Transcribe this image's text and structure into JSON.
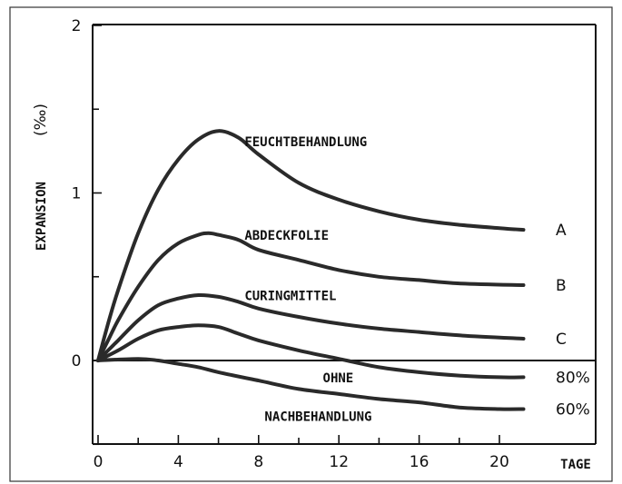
{
  "chart_data": {
    "type": "line",
    "ylabel": "EXPANSION",
    "ylabel_unit": "(‰)",
    "xlabel": "TAGE",
    "xlim": [
      0,
      20
    ],
    "ylim": [
      -0.5,
      2
    ],
    "x_ticks": [
      0,
      4,
      8,
      12,
      16,
      20
    ],
    "y_ticks": [
      0,
      1,
      2
    ],
    "grid": false,
    "x_tick_labels": [
      "0",
      "4",
      "8",
      "12",
      "16",
      "20"
    ],
    "y_tick_labels": [
      "0",
      "1",
      "2"
    ],
    "series": [
      {
        "name": "A",
        "color": "#2a2a2a",
        "points": [
          [
            0,
            0
          ],
          [
            0.5,
            0.22
          ],
          [
            1,
            0.42
          ],
          [
            2,
            0.76
          ],
          [
            3,
            1.02
          ],
          [
            4,
            1.2
          ],
          [
            5,
            1.32
          ],
          [
            6,
            1.37
          ],
          [
            7,
            1.33
          ],
          [
            8,
            1.23
          ],
          [
            10,
            1.06
          ],
          [
            12,
            0.96
          ],
          [
            14,
            0.89
          ],
          [
            16,
            0.84
          ],
          [
            18,
            0.81
          ],
          [
            20,
            0.79
          ],
          [
            21.2,
            0.78
          ]
        ]
      },
      {
        "name": "B",
        "color": "#2a2a2a",
        "points": [
          [
            0,
            0
          ],
          [
            0.5,
            0.12
          ],
          [
            1,
            0.24
          ],
          [
            2,
            0.44
          ],
          [
            3,
            0.6
          ],
          [
            4,
            0.7
          ],
          [
            5,
            0.75
          ],
          [
            5.5,
            0.76
          ],
          [
            6,
            0.75
          ],
          [
            7,
            0.72
          ],
          [
            8,
            0.66
          ],
          [
            10,
            0.6
          ],
          [
            12,
            0.54
          ],
          [
            14,
            0.5
          ],
          [
            16,
            0.48
          ],
          [
            18,
            0.46
          ],
          [
            21.2,
            0.45
          ]
        ]
      },
      {
        "name": "C",
        "color": "#2a2a2a",
        "points": [
          [
            0,
            0
          ],
          [
            0.5,
            0.06
          ],
          [
            1,
            0.12
          ],
          [
            2,
            0.24
          ],
          [
            3,
            0.33
          ],
          [
            4,
            0.37
          ],
          [
            5,
            0.39
          ],
          [
            6,
            0.38
          ],
          [
            7,
            0.35
          ],
          [
            8,
            0.31
          ],
          [
            10,
            0.26
          ],
          [
            12,
            0.22
          ],
          [
            14,
            0.19
          ],
          [
            16,
            0.17
          ],
          [
            18,
            0.15
          ],
          [
            21.2,
            0.13
          ]
        ]
      },
      {
        "name": "80%",
        "color": "#2a2a2a",
        "points": [
          [
            0,
            0
          ],
          [
            1,
            0.06
          ],
          [
            2,
            0.13
          ],
          [
            3,
            0.18
          ],
          [
            4,
            0.2
          ],
          [
            5,
            0.21
          ],
          [
            6,
            0.2
          ],
          [
            7,
            0.16
          ],
          [
            8,
            0.12
          ],
          [
            10,
            0.06
          ],
          [
            12,
            0.01
          ],
          [
            14,
            -0.04
          ],
          [
            16,
            -0.07
          ],
          [
            18,
            -0.09
          ],
          [
            20,
            -0.1
          ],
          [
            21.2,
            -0.1
          ]
        ]
      },
      {
        "name": "60%",
        "color": "#2a2a2a",
        "points": [
          [
            0,
            0
          ],
          [
            2,
            0.01
          ],
          [
            3,
            0.0
          ],
          [
            4,
            -0.02
          ],
          [
            5,
            -0.04
          ],
          [
            6,
            -0.07
          ],
          [
            8,
            -0.12
          ],
          [
            10,
            -0.17
          ],
          [
            12,
            -0.2
          ],
          [
            14,
            -0.23
          ],
          [
            16,
            -0.25
          ],
          [
            18,
            -0.28
          ],
          [
            20,
            -0.29
          ],
          [
            21.2,
            -0.29
          ]
        ]
      }
    ],
    "annotations": [
      {
        "text": "FEUCHTBEHANDLUNG",
        "x": 7.3,
        "y": 1.28
      },
      {
        "text": "ABDECKFOLIE",
        "x": 7.3,
        "y": 0.72
      },
      {
        "text": "CURINGMITTEL",
        "x": 7.3,
        "y": 0.36
      },
      {
        "text": "OHNE",
        "x": 11.2,
        "y": -0.13
      },
      {
        "text": "NACHBEHANDLUNG",
        "x": 8.3,
        "y": -0.36
      }
    ],
    "series_labels": [
      "A",
      "B",
      "C",
      "80%",
      "60%"
    ]
  }
}
